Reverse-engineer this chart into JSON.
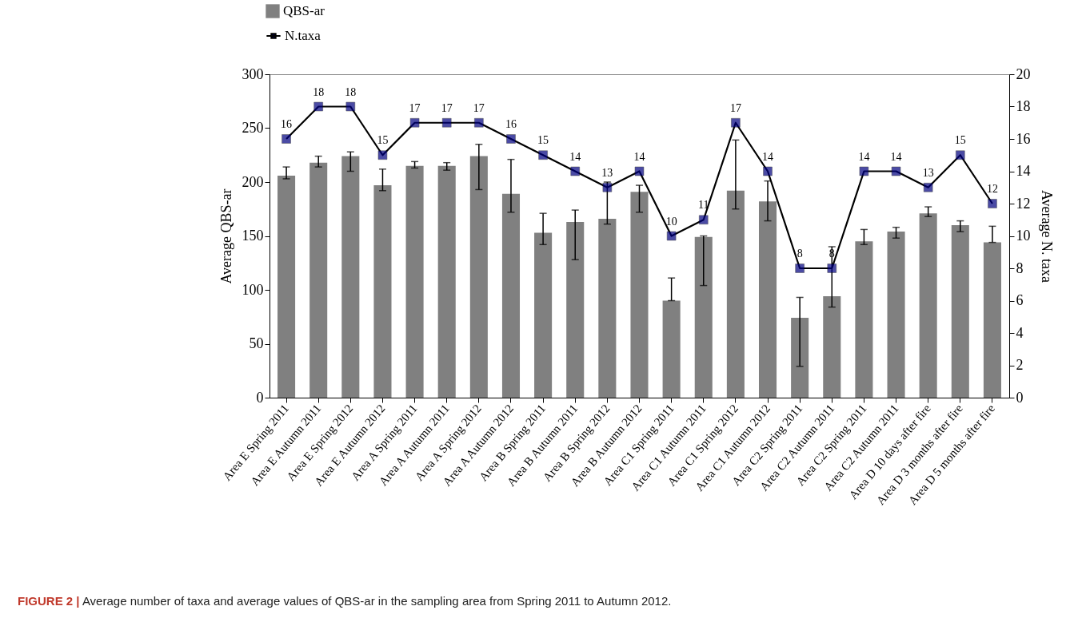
{
  "chart_data": {
    "type": "bar",
    "categories": [
      "Area E Spring 2011",
      "Area E Autumn 2011",
      "Area E Spring 2012",
      "Area E Autumn 2012",
      "Area A Spring 2011",
      "Area A Autumn 2011",
      "Area A Spring 2012",
      "Area A Autumn 2012",
      "Area B Spring 2011",
      "Area B Autumn 2011",
      "Area B Spring 2012",
      "Area B Autumn 2012",
      "Area C1 Spring 2011",
      "Area C1 Autumn 2011",
      "Area C1 Spring 2012",
      "Area C1 Autumn 2012",
      "Area C2 Spring 2011",
      "Area C2 Autumn 2011",
      "Area C2 Spring 2011",
      "Area C2 Autumn 2011",
      "Area D 10 days after fire",
      "Area D 3 months after fire",
      "Area D 5 months after fire"
    ],
    "series": [
      {
        "name": "QBS-ar",
        "color": "#808080",
        "values": [
          206,
          218,
          224,
          197,
          215,
          215,
          224,
          189,
          153,
          163,
          166,
          191,
          90,
          149,
          192,
          182,
          74,
          94,
          145,
          154,
          171,
          160,
          144
        ],
        "errors": [
          [
            203,
            214
          ],
          [
            214,
            224
          ],
          [
            210,
            228
          ],
          [
            192,
            212
          ],
          [
            213,
            219
          ],
          [
            211,
            218
          ],
          [
            193,
            235
          ],
          [
            172,
            221
          ],
          [
            142,
            171
          ],
          [
            128,
            174
          ],
          [
            161,
            200
          ],
          [
            172,
            197
          ],
          [
            90,
            111
          ],
          [
            104,
            150
          ],
          [
            175,
            239
          ],
          [
            164,
            201
          ],
          [
            29,
            93
          ],
          [
            84,
            140
          ],
          [
            142,
            156
          ],
          [
            148,
            158
          ],
          [
            168,
            177
          ],
          [
            154,
            164
          ],
          [
            144,
            159
          ]
        ]
      },
      {
        "name": "N.taxa",
        "type": "line",
        "axis": "y2",
        "color": "#000000",
        "marker": "square",
        "data_labels": true,
        "values": [
          16,
          18,
          18,
          15,
          17,
          17,
          17,
          16,
          15,
          14,
          13,
          14,
          10,
          11,
          17,
          14,
          8,
          8,
          14,
          14,
          13,
          15,
          12
        ]
      }
    ],
    "ylabel": "Average QBS-ar",
    "y2label": "Average N. taxa",
    "ylim": [
      0,
      300
    ],
    "yticks": [
      0,
      50,
      100,
      150,
      200,
      250,
      300
    ],
    "y2lim": [
      0,
      20
    ],
    "y2ticks": [
      0,
      2,
      4,
      6,
      8,
      10,
      12,
      14,
      16,
      18,
      20
    ],
    "grid": false,
    "legend": "top left",
    "annotations": [
      "FIGURE 2 | Average number of taxa and average values of QBS-ar in the sampling area from Spring 2011 to Autumn 2012."
    ]
  }
}
